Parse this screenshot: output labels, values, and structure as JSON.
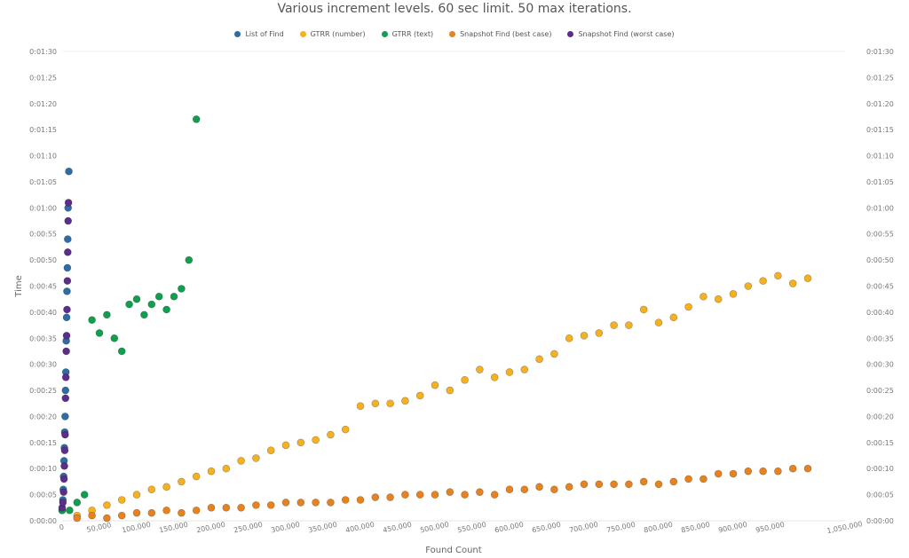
{
  "chart_data": {
    "type": "scatter",
    "title": "Various increment levels. 60 sec limit. 50 max iterations.",
    "xlabel": "Found Count",
    "ylabel": "Time",
    "xlim": [
      0,
      1050000
    ],
    "ylim": [
      0,
      90
    ],
    "x_ticks": [
      0,
      50000,
      100000,
      150000,
      200000,
      250000,
      300000,
      350000,
      400000,
      450000,
      500000,
      550000,
      600000,
      650000,
      700000,
      750000,
      800000,
      850000,
      900000,
      950000,
      1050000
    ],
    "x_tick_labels": [
      "0",
      "50,000",
      "100,000",
      "150,000",
      "200,000",
      "250,000",
      "300,000",
      "350,000",
      "400,000",
      "450,000",
      "500,000",
      "550,000",
      "600,000",
      "650,000",
      "700,000",
      "750,000",
      "800,000",
      "850,000",
      "900,000",
      "950,000",
      "1,050,000"
    ],
    "y_ticks": [
      0,
      5,
      10,
      15,
      20,
      25,
      30,
      35,
      40,
      45,
      50,
      55,
      60,
      65,
      70,
      75,
      80,
      85,
      90
    ],
    "y_tick_labels": [
      "0:00:00",
      "0:00:05",
      "0:00:10",
      "0:00:15",
      "0:00:20",
      "0:00:25",
      "0:00:30",
      "0:00:35",
      "0:00:40",
      "0:00:45",
      "0:00:50",
      "0:00:55",
      "0:01:00",
      "0:01:05",
      "0:01:10",
      "0:01:15",
      "0:01:20",
      "0:01:25",
      "0:01:30"
    ],
    "grid": false,
    "legend_position": "top",
    "series": [
      {
        "name": "List of Find",
        "color": "#2e6da4",
        "points": [
          [
            0,
            2
          ],
          [
            1000,
            4
          ],
          [
            1500,
            6
          ],
          [
            2000,
            8.5
          ],
          [
            2500,
            11.5
          ],
          [
            3000,
            14
          ],
          [
            3500,
            17
          ],
          [
            4000,
            20
          ],
          [
            4500,
            25
          ],
          [
            5000,
            28.5
          ],
          [
            5500,
            34.5
          ],
          [
            6000,
            39
          ],
          [
            6500,
            44
          ],
          [
            7000,
            48.5
          ],
          [
            7500,
            54
          ],
          [
            8000,
            60
          ],
          [
            9000,
            67
          ]
        ]
      },
      {
        "name": "GTRR (number)",
        "color": "#f5b120",
        "points": [
          [
            20000,
            1
          ],
          [
            40000,
            2
          ],
          [
            60000,
            3
          ],
          [
            80000,
            4
          ],
          [
            100000,
            5
          ],
          [
            120000,
            6
          ],
          [
            140000,
            6.5
          ],
          [
            160000,
            7.5
          ],
          [
            180000,
            8.5
          ],
          [
            200000,
            9.5
          ],
          [
            220000,
            10
          ],
          [
            240000,
            11.5
          ],
          [
            260000,
            12
          ],
          [
            280000,
            13.5
          ],
          [
            300000,
            14.5
          ],
          [
            320000,
            15
          ],
          [
            340000,
            15.5
          ],
          [
            360000,
            16.5
          ],
          [
            380000,
            17.5
          ],
          [
            400000,
            22
          ],
          [
            420000,
            22.5
          ],
          [
            440000,
            22.5
          ],
          [
            460000,
            23
          ],
          [
            480000,
            24
          ],
          [
            500000,
            26
          ],
          [
            520000,
            25
          ],
          [
            540000,
            27
          ],
          [
            560000,
            29
          ],
          [
            580000,
            27.5
          ],
          [
            600000,
            28.5
          ],
          [
            620000,
            29
          ],
          [
            640000,
            31
          ],
          [
            660000,
            32
          ],
          [
            680000,
            35
          ],
          [
            700000,
            35.5
          ],
          [
            720000,
            36
          ],
          [
            740000,
            37.5
          ],
          [
            760000,
            37.5
          ],
          [
            780000,
            40.5
          ],
          [
            800000,
            38
          ],
          [
            820000,
            39
          ],
          [
            840000,
            41
          ],
          [
            860000,
            43
          ],
          [
            880000,
            42.5
          ],
          [
            900000,
            43.5
          ],
          [
            920000,
            45
          ],
          [
            940000,
            46
          ],
          [
            960000,
            47
          ],
          [
            980000,
            45.5
          ],
          [
            1000000,
            46.5
          ]
        ]
      },
      {
        "name": "GTRR (text)",
        "color": "#109e4f",
        "points": [
          [
            0,
            2
          ],
          [
            10000,
            2
          ],
          [
            20000,
            3.5
          ],
          [
            30000,
            5
          ],
          [
            40000,
            38.5
          ],
          [
            50000,
            36
          ],
          [
            60000,
            39.5
          ],
          [
            70000,
            35
          ],
          [
            80000,
            32.5
          ],
          [
            90000,
            41.5
          ],
          [
            100000,
            42.5
          ],
          [
            110000,
            39.5
          ],
          [
            120000,
            41.5
          ],
          [
            130000,
            43
          ],
          [
            140000,
            40.5
          ],
          [
            150000,
            43
          ],
          [
            160000,
            44.5
          ],
          [
            170000,
            50
          ],
          [
            180000,
            77
          ]
        ]
      },
      {
        "name": "Snapshot Find (best case)",
        "color": "#e8821e",
        "points": [
          [
            20000,
            0.5
          ],
          [
            40000,
            1
          ],
          [
            60000,
            0.5
          ],
          [
            80000,
            1
          ],
          [
            100000,
            1.5
          ],
          [
            120000,
            1.5
          ],
          [
            140000,
            2
          ],
          [
            160000,
            1.5
          ],
          [
            180000,
            2
          ],
          [
            200000,
            2.5
          ],
          [
            220000,
            2.5
          ],
          [
            240000,
            2.5
          ],
          [
            260000,
            3
          ],
          [
            280000,
            3
          ],
          [
            300000,
            3.5
          ],
          [
            320000,
            3.5
          ],
          [
            340000,
            3.5
          ],
          [
            360000,
            3.5
          ],
          [
            380000,
            4
          ],
          [
            400000,
            4
          ],
          [
            420000,
            4.5
          ],
          [
            440000,
            4.5
          ],
          [
            460000,
            5
          ],
          [
            480000,
            5
          ],
          [
            500000,
            5
          ],
          [
            520000,
            5.5
          ],
          [
            540000,
            5
          ],
          [
            560000,
            5.5
          ],
          [
            580000,
            5
          ],
          [
            600000,
            6
          ],
          [
            620000,
            6
          ],
          [
            640000,
            6.5
          ],
          [
            660000,
            6
          ],
          [
            680000,
            6.5
          ],
          [
            700000,
            7
          ],
          [
            720000,
            7
          ],
          [
            740000,
            7
          ],
          [
            760000,
            7
          ],
          [
            780000,
            7.5
          ],
          [
            800000,
            7
          ],
          [
            820000,
            7.5
          ],
          [
            840000,
            8
          ],
          [
            860000,
            8
          ],
          [
            880000,
            9
          ],
          [
            900000,
            9
          ],
          [
            920000,
            9.5
          ],
          [
            940000,
            9.5
          ],
          [
            960000,
            9.5
          ],
          [
            980000,
            10
          ],
          [
            1000000,
            10
          ]
        ]
      },
      {
        "name": "Snapshot Find (worst case)",
        "color": "#5c2d8a",
        "points": [
          [
            0,
            2.5
          ],
          [
            1000,
            3.5
          ],
          [
            2000,
            5.5
          ],
          [
            2500,
            8
          ],
          [
            3000,
            10.5
          ],
          [
            3500,
            13.5
          ],
          [
            4000,
            16.5
          ],
          [
            4500,
            23.5
          ],
          [
            5000,
            27.5
          ],
          [
            5500,
            32.5
          ],
          [
            6000,
            35.5
          ],
          [
            6500,
            40.5
          ],
          [
            7000,
            46
          ],
          [
            7500,
            51.5
          ],
          [
            8000,
            57.5
          ],
          [
            8500,
            61
          ]
        ]
      }
    ]
  }
}
